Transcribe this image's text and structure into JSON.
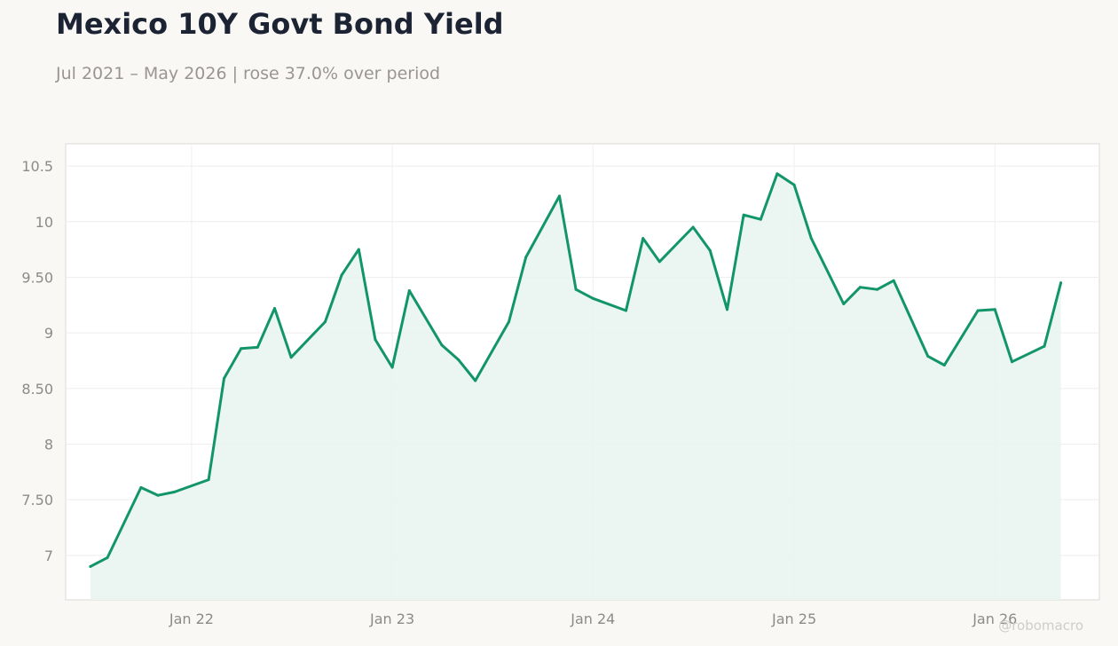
{
  "title": "Mexico 10Y Govt Bond Yield",
  "subtitle": "Jul 2021 – May 2026 | rose 37.0% over period",
  "watermark": "@robomacro",
  "colors": {
    "line": "#12956a",
    "fill": "#e9f4ef",
    "background": "#f9f8f5",
    "plot_background": "#ffffff",
    "grid": "#efeeeb",
    "title": "#1c2434",
    "muted": "#999691"
  },
  "chart_data": {
    "type": "area",
    "title": "Mexico 10Y Govt Bond Yield",
    "xlabel": "",
    "ylabel": "",
    "grid": true,
    "legend": "none",
    "ylim": [
      6.6,
      10.7
    ],
    "xlim": [
      "2021-05-17",
      "2026-07-10"
    ],
    "y_ticks": [
      7,
      7.5,
      8,
      8.5,
      9,
      9.5,
      10,
      10.5
    ],
    "y_tick_labels": [
      "7",
      "7.50",
      "8",
      "8.50",
      "9",
      "9.50",
      "10",
      "10.5"
    ],
    "x_ticks": [
      "2022-01-01",
      "2023-01-01",
      "2024-01-01",
      "2025-01-01",
      "2026-01-01"
    ],
    "x_tick_labels": [
      "Jan 22",
      "Jan 23",
      "Jan 24",
      "Jan 25",
      "Jan 26"
    ],
    "x": [
      "2021-07-01",
      "2021-08-01",
      "2021-10-01",
      "2021-11-01",
      "2021-12-01",
      "2022-02-01",
      "2022-03-01",
      "2022-04-01",
      "2022-05-01",
      "2022-06-01",
      "2022-07-01",
      "2022-09-01",
      "2022-10-01",
      "2022-11-01",
      "2022-12-01",
      "2023-01-01",
      "2023-02-01",
      "2023-04-01",
      "2023-05-01",
      "2023-06-01",
      "2023-08-01",
      "2023-09-01",
      "2023-11-01",
      "2023-12-01",
      "2024-01-01",
      "2024-03-01",
      "2024-04-01",
      "2024-05-01",
      "2024-07-01",
      "2024-08-01",
      "2024-09-01",
      "2024-10-01",
      "2024-11-01",
      "2024-12-01",
      "2025-01-01",
      "2025-02-01",
      "2025-04-01",
      "2025-05-01",
      "2025-06-01",
      "2025-07-01",
      "2025-09-01",
      "2025-10-01",
      "2025-12-01",
      "2026-01-01",
      "2026-02-01",
      "2026-04-01",
      "2026-05-01"
    ],
    "series": [
      {
        "values": [
          6.9,
          6.98,
          7.61,
          7.54,
          7.57,
          7.68,
          8.59,
          8.86,
          8.87,
          9.22,
          8.78,
          9.1,
          9.52,
          9.75,
          8.94,
          8.69,
          9.38,
          8.89,
          8.76,
          8.57,
          9.1,
          9.68,
          10.23,
          9.39,
          9.31,
          9.2,
          9.85,
          9.64,
          9.95,
          9.74,
          9.21,
          10.06,
          10.02,
          10.43,
          10.33,
          9.85,
          9.26,
          9.41,
          9.39,
          9.47,
          8.79,
          8.71,
          9.2,
          9.21,
          8.74,
          8.88,
          9.45
        ]
      }
    ]
  }
}
